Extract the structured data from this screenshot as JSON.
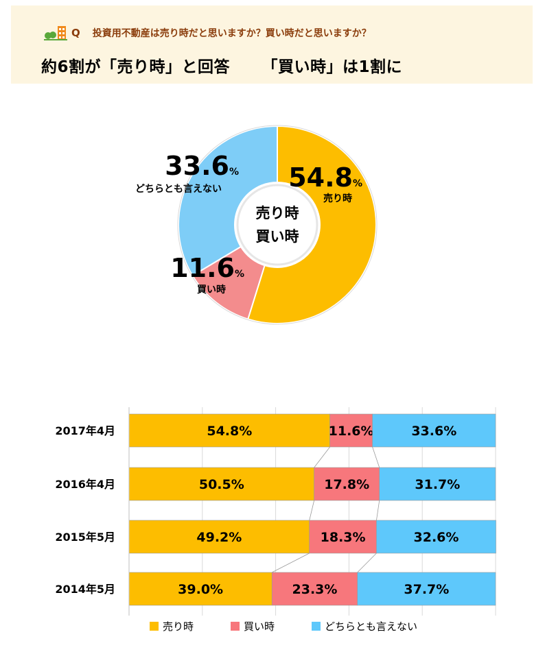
{
  "header": {
    "q_mark": "Q",
    "question": "投資用不動産は売り時だと思いますか？買い時だと思いますか？",
    "headline_part1": "約6割が「売り時」と回答",
    "headline_part2": "「買い時」は1割に"
  },
  "colors": {
    "sell": "#fdbd00",
    "buy": "#f38c8d",
    "neither_pie": "#7ecdf7",
    "buy_bar": "#f7777c",
    "neither_bar": "#5ec8fb"
  },
  "chart_data": [
    {
      "type": "pie",
      "title": "",
      "center_label_line1": "売り時",
      "center_label_line2": "買い時",
      "slices": [
        {
          "name": "売り時",
          "value": 54.8,
          "value_text": "54.8",
          "unit": "%",
          "label": "売り時"
        },
        {
          "name": "買い時",
          "value": 11.6,
          "value_text": "11.6",
          "unit": "%",
          "label": "買い時"
        },
        {
          "name": "どちらとも言えない",
          "value": 33.6,
          "value_text": "33.6",
          "unit": "%",
          "label": "どちらとも言えない"
        }
      ]
    },
    {
      "type": "bar",
      "orientation": "horizontal",
      "stacked": true,
      "categories": [
        "2017年4月",
        "2016年4月",
        "2015年5月",
        "2014年5月"
      ],
      "series": [
        {
          "name": "売り時",
          "values": [
            54.8,
            50.5,
            49.2,
            39.0
          ],
          "labels": [
            "54.8%",
            "50.5%",
            "49.2%",
            "39.0%"
          ]
        },
        {
          "name": "買い時",
          "values": [
            11.6,
            17.8,
            18.3,
            23.3
          ],
          "labels": [
            "11.6%",
            "17.8%",
            "18.3%",
            "23.3%"
          ]
        },
        {
          "name": "どちらとも言えない",
          "values": [
            33.6,
            31.7,
            32.6,
            37.7
          ],
          "labels": [
            "33.6%",
            "31.7%",
            "32.6%",
            "37.7%"
          ]
        }
      ],
      "xlim": [
        0,
        100
      ],
      "grid": true,
      "legend": "bottom"
    }
  ]
}
